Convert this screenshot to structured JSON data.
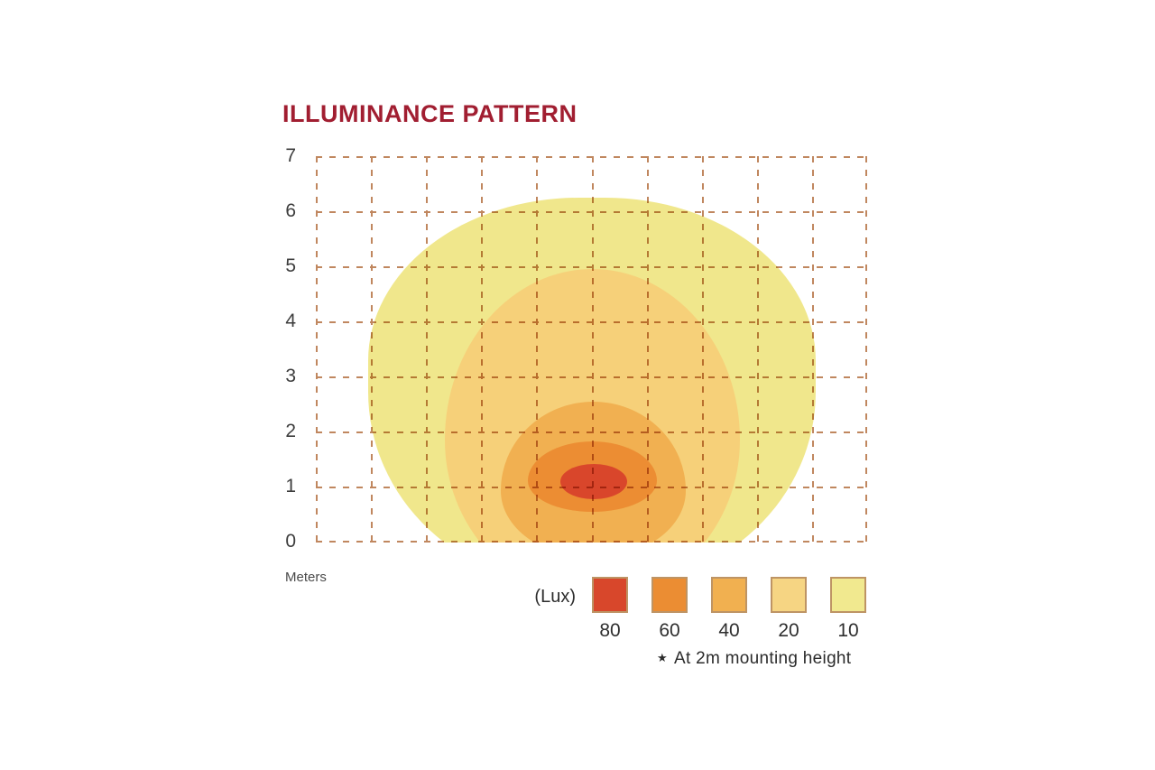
{
  "title": {
    "text": "ILLUMINANCE PATTERN",
    "color": "#A11E31"
  },
  "axis": {
    "unit_label": "Meters",
    "y_ticks": [
      "7",
      "6",
      "5",
      "4",
      "3",
      "2",
      "1",
      "0"
    ]
  },
  "legend": {
    "unit_label": "(Lux)",
    "swatch_border_color": "#BE9464",
    "items": [
      {
        "lux": "80",
        "color": "#D8472B"
      },
      {
        "lux": "60",
        "color": "#EB8D33"
      },
      {
        "lux": "40",
        "color": "#F1B050"
      },
      {
        "lux": "20",
        "color": "#F6D583"
      },
      {
        "lux": "10",
        "color": "#F1E98F"
      }
    ]
  },
  "note": {
    "star": "★",
    "text": "At 2m mounting height"
  },
  "chart_data": {
    "type": "heatmap",
    "subtype": "filled-contour-illuminance",
    "title": "ILLUMINANCE PATTERN",
    "xlabel": "",
    "ylabel": "Meters",
    "ylim": [
      0,
      7
    ],
    "xlim_columns": [
      0,
      10
    ],
    "grid": {
      "rows": 7,
      "cols": 10,
      "style": "dashed",
      "line_color": "#C0875F"
    },
    "legend_position": "bottom",
    "value_unit": "Lux",
    "mounting_note": "At 2m mounting height",
    "contours": [
      {
        "lux": 10,
        "color": "#F0E78C",
        "x_min_col": 0.95,
        "x_max_col": 9.07,
        "y_top_m": 6.24,
        "y_bottom_m": -0.8
      },
      {
        "lux": 20,
        "color": "#F6D079",
        "x_min_col": 2.34,
        "x_max_col": 7.7,
        "y_top_m": 4.96,
        "y_bottom_m": -1.0
      },
      {
        "lux": 40,
        "color": "#F1B051",
        "x_min_col": 3.36,
        "x_max_col": 6.71,
        "y_top_m": 2.55,
        "y_bottom_m": -0.28
      },
      {
        "lux": 60,
        "color": "#EC8D33",
        "x_min_col": 3.85,
        "x_max_col": 6.19,
        "y_top_m": 1.82,
        "y_bottom_m": 0.54
      },
      {
        "lux": 80,
        "color": "#D9462B",
        "x_min_col": 4.44,
        "x_max_col": 5.65,
        "y_top_m": 1.41,
        "y_bottom_m": 0.77
      }
    ]
  }
}
